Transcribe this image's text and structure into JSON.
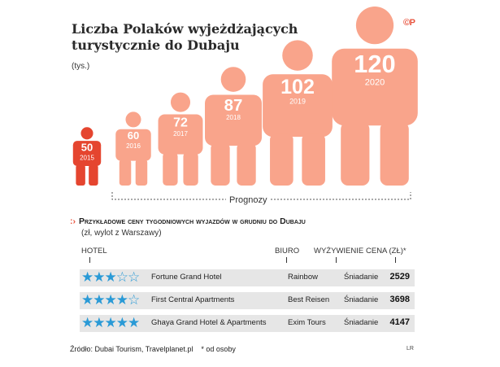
{
  "header": {
    "title_line1": "Liczba Polaków wyjeżdżających",
    "title_line2": "turystycznie do Dubaju",
    "unit": "(tys.)",
    "logo": "©P",
    "accent_color": "#e8533d",
    "figure_color": "#f9a48b"
  },
  "chart_data": {
    "type": "bar",
    "title": "Liczba Polaków wyjeżdżających turystycznie do Dubaju",
    "ylabel": "(tys.)",
    "categories": [
      "2015",
      "2016",
      "2017",
      "2018",
      "2019",
      "2020"
    ],
    "values": [
      50,
      60,
      72,
      87,
      102,
      120
    ],
    "value_labels": [
      "50",
      "60",
      "72",
      "87",
      "102",
      "120"
    ],
    "forecast_label": "Prognozy",
    "forecast_years": [
      "2016",
      "2017",
      "2018",
      "2019",
      "2020"
    ],
    "colors": {
      "actual": "#e5452f",
      "forecast": "#f9a48b"
    }
  },
  "table": {
    "title": "Przykładowe ceny tygodniowych wyjazdów w grudniu do Dubaju",
    "subtitle": "(zł, wylot z Warszawy)",
    "headers": {
      "hotel": "HOTEL",
      "biuro": "BIURO",
      "wyzywienie": "WYŻYWIENIE",
      "cena": "CENA (ZŁ)*"
    },
    "star_color": "#2a9ad6",
    "rows": [
      {
        "stars": 3,
        "stars_glyph": "★★★☆☆",
        "hotel": "Fortune Grand Hotel",
        "biuro": "Rainbow",
        "wyzywienie": "Śniadanie",
        "cena": "2529"
      },
      {
        "stars": 4,
        "stars_glyph": "★★★★☆",
        "hotel": "First Central Apartments",
        "biuro": "Best Reisen",
        "wyzywienie": "Śniadanie",
        "cena": "3698"
      },
      {
        "stars": 5,
        "stars_glyph": "★★★★★",
        "hotel": "Ghaya Grand Hotel & Apartments",
        "biuro": "Exim Tours",
        "wyzywienie": "Śniadanie",
        "cena": "4147"
      }
    ]
  },
  "footer": {
    "source": "Źródło: Dubai Tourism, Travelplanet.pl",
    "note": "* od osoby",
    "author": "LR"
  }
}
